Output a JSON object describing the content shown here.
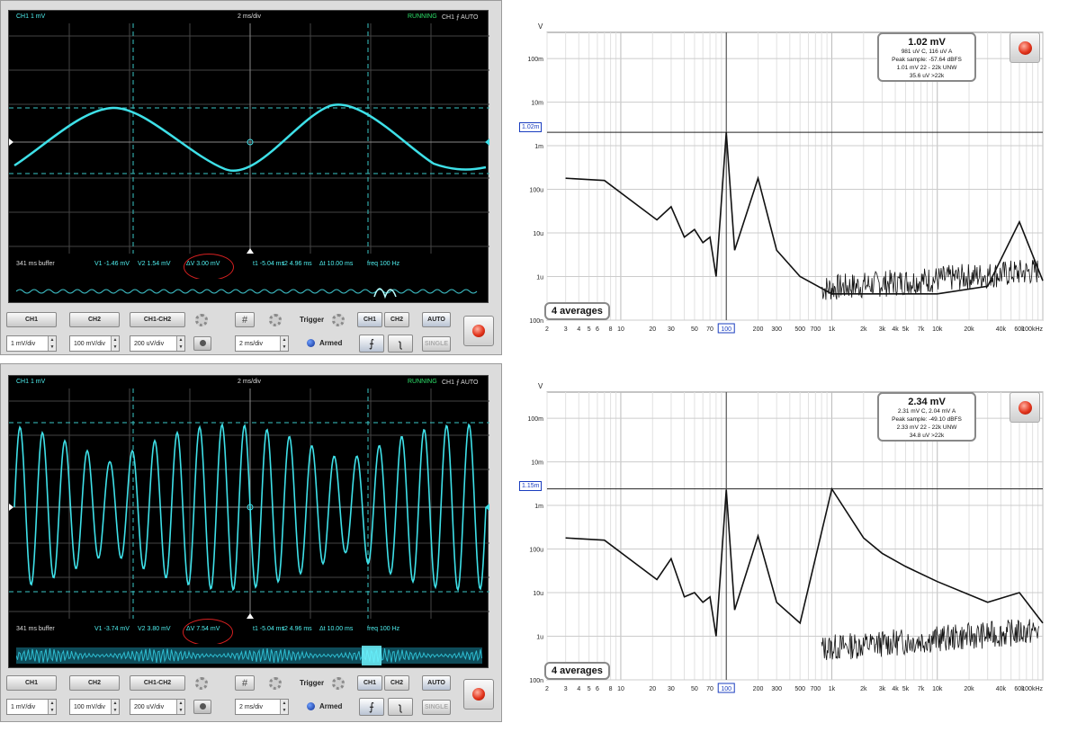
{
  "scopes": [
    {
      "header": {
        "channel": "CH1 1 mV",
        "timebase": "2 ms/div",
        "status": "RUNNING",
        "trigger": "CH1 ⨍ AUTO"
      },
      "readout": {
        "buffer": "341 ms buffer",
        "v1": "V1 -1.46 mV",
        "v2": "V2 1.54 mV",
        "dv": "ΔV 3.00 mV",
        "t1": "t1 -5.04 ms",
        "t2": "t2 4.96 ms",
        "dt": "Δt 10.00 ms",
        "freq": "freq 100 Hz"
      },
      "controls": {
        "ch1": "CH1",
        "ch2": "CH2",
        "ch1_minus_ch2": "CH1-CH2",
        "ch1_scale": "1 mV/div",
        "ch2_scale": "100 mV/div",
        "diff_scale": "200 uV/div",
        "timebase": "2 ms/div",
        "trigger_label": "Trigger",
        "armed": "Armed",
        "trig_ch1": "CH1",
        "trig_ch2": "CH2",
        "auto": "AUTO",
        "single": "SINGLE"
      }
    },
    {
      "header": {
        "channel": "CH1 1 mV",
        "timebase": "2 ms/div",
        "status": "RUNNING",
        "trigger": "CH1 ⨍ AUTO"
      },
      "readout": {
        "buffer": "341 ms buffer",
        "v1": "V1 -3.74 mV",
        "v2": "V2 3.80 mV",
        "dv": "ΔV 7.54 mV",
        "t1": "t1 -5.04 ms",
        "t2": "t2 4.96 ms",
        "dt": "Δt 10.00 ms",
        "freq": "freq 100 Hz"
      },
      "controls": {
        "ch1": "CH1",
        "ch2": "CH2",
        "ch1_minus_ch2": "CH1-CH2",
        "ch1_scale": "1 mV/div",
        "ch2_scale": "100 mV/div",
        "diff_scale": "200 uV/div",
        "timebase": "2 ms/div",
        "trigger_label": "Trigger",
        "armed": "Armed",
        "trig_ch1": "CH1",
        "trig_ch2": "CH2",
        "auto": "AUTO",
        "single": "SINGLE"
      }
    }
  ],
  "spectra": [
    {
      "y_unit": "V",
      "marker": "1.02m",
      "info": {
        "main": "1.02 mV",
        "l1": "981 uV C, 116 uV A",
        "l2": "Peak sample: -57.64 dBFS",
        "l3": "1.01 mV 22 - 22k UNW",
        "l4": "35.6 uV >22k"
      },
      "averages": "4 averages"
    },
    {
      "y_unit": "V",
      "marker": "1.15m",
      "info": {
        "main": "2.34 mV",
        "l1": "2.31 mV C, 2.04 mV A",
        "l2": "Peak sample: -49.10 dBFS",
        "l3": "2.33 mV 22 - 22k UNW",
        "l4": "34.8 uV >22k"
      },
      "averages": "4 averages"
    }
  ],
  "chart_data": [
    {
      "type": "line",
      "title": "",
      "xlabel": "",
      "ylabel": "V",
      "log_x": true,
      "log_y": true,
      "xlim": [
        2,
        100000
      ],
      "ylim": [
        5e-08,
        0.0002
      ],
      "y_ticks": [
        "100m",
        "10m",
        "1m",
        "100u",
        "10u",
        "1u",
        "100n"
      ],
      "x_ticks": [
        "2",
        "3",
        "4",
        "5",
        "6",
        "8",
        "10",
        "20",
        "30",
        "50",
        "70",
        "100",
        "200",
        "300",
        "500",
        "700",
        "1k",
        "2k",
        "3k",
        "4k",
        "5k",
        "7k",
        "10k",
        "20k",
        "40k",
        "60k",
        "100kHz"
      ],
      "series": [
        {
          "x": [
            3,
            7,
            15,
            22,
            30,
            40,
            50,
            60,
            70,
            80,
            100,
            120,
            200,
            300,
            500,
            1000,
            3000,
            10000,
            30000,
            60000,
            100000
          ],
          "values": [
            9e-05,
            8e-05,
            2e-05,
            1e-05,
            2e-05,
            4e-06,
            6e-06,
            3e-06,
            4e-06,
            5e-07,
            0.00102,
            2e-06,
            9e-05,
            2e-06,
            5e-07,
            2e-07,
            2e-07,
            2e-07,
            3e-07,
            9e-06,
            4e-07
          ]
        }
      ],
      "grid": true
    },
    {
      "type": "line",
      "title": "",
      "xlabel": "",
      "ylabel": "V",
      "log_x": true,
      "log_y": true,
      "xlim": [
        2,
        100000
      ],
      "ylim": [
        5e-08,
        0.0002
      ],
      "y_ticks": [
        "100m",
        "10m",
        "1m",
        "100u",
        "10u",
        "1u",
        "100n"
      ],
      "x_ticks": [
        "2",
        "3",
        "4",
        "5",
        "6",
        "8",
        "10",
        "20",
        "30",
        "50",
        "70",
        "100",
        "200",
        "300",
        "500",
        "700",
        "1k",
        "2k",
        "3k",
        "4k",
        "5k",
        "7k",
        "10k",
        "20k",
        "40k",
        "60k",
        "100kHz"
      ],
      "series": [
        {
          "x": [
            3,
            7,
            15,
            22,
            30,
            40,
            50,
            60,
            70,
            80,
            100,
            120,
            200,
            300,
            500,
            1000,
            2000,
            3000,
            5000,
            10000,
            30000,
            60000,
            100000
          ],
          "values": [
            9e-05,
            8e-05,
            2e-05,
            1e-05,
            3e-05,
            4e-06,
            5e-06,
            3e-06,
            4e-06,
            5e-07,
            0.00115,
            2e-06,
            0.0001,
            3e-06,
            1e-06,
            0.0012,
            9e-05,
            4e-05,
            2e-05,
            9e-06,
            3e-06,
            5e-06,
            1e-06
          ]
        }
      ],
      "grid": true
    }
  ]
}
